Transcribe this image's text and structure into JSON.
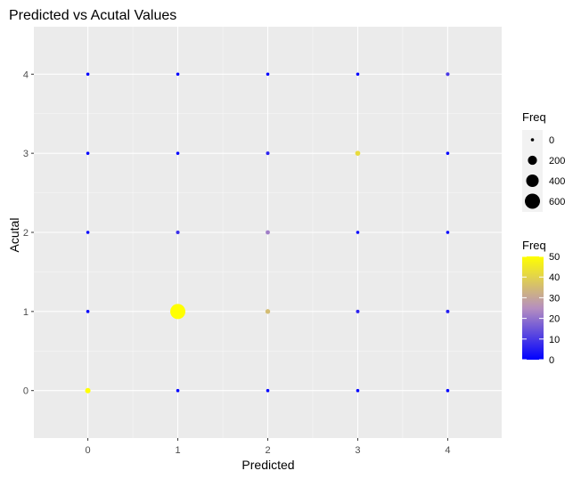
{
  "chart_data": {
    "type": "scatter",
    "title": "Predicted vs Acutal Values",
    "xlabel": "Predicted",
    "ylabel": "Acutal",
    "x_ticks": [
      "0",
      "1",
      "2",
      "3",
      "4"
    ],
    "y_ticks": [
      "0",
      "1",
      "2",
      "3",
      "4"
    ],
    "xlim": [
      -0.6,
      4.6
    ],
    "ylim": [
      -0.6,
      4.6
    ],
    "grid": true,
    "legend_position": "right",
    "size_legend": {
      "title": "Freq",
      "breaks": [
        0,
        200,
        400,
        600
      ],
      "labels": [
        "0",
        "200",
        "400",
        "600"
      ]
    },
    "color_legend": {
      "title": "Freq",
      "breaks": [
        0,
        10,
        20,
        30,
        40,
        50
      ],
      "labels": [
        "0",
        "10",
        "20",
        "30",
        "40",
        "50"
      ],
      "low_color": "#0000ff",
      "high_color": "#ffff00",
      "limits": [
        0,
        50
      ]
    },
    "points": [
      {
        "predicted": 0,
        "actual": 0,
        "freq": 50
      },
      {
        "predicted": 1,
        "actual": 0,
        "freq": 0
      },
      {
        "predicted": 2,
        "actual": 0,
        "freq": 0
      },
      {
        "predicted": 3,
        "actual": 0,
        "freq": 0
      },
      {
        "predicted": 4,
        "actual": 0,
        "freq": 0
      },
      {
        "predicted": 0,
        "actual": 1,
        "freq": 1
      },
      {
        "predicted": 1,
        "actual": 1,
        "freq": 600
      },
      {
        "predicted": 2,
        "actual": 1,
        "freq": 35
      },
      {
        "predicted": 3,
        "actual": 1,
        "freq": 6
      },
      {
        "predicted": 4,
        "actual": 1,
        "freq": 5
      },
      {
        "predicted": 0,
        "actual": 2,
        "freq": 0
      },
      {
        "predicted": 1,
        "actual": 2,
        "freq": 8
      },
      {
        "predicted": 2,
        "actual": 2,
        "freq": 22
      },
      {
        "predicted": 3,
        "actual": 2,
        "freq": 0
      },
      {
        "predicted": 4,
        "actual": 2,
        "freq": 0
      },
      {
        "predicted": 0,
        "actual": 3,
        "freq": 0
      },
      {
        "predicted": 1,
        "actual": 3,
        "freq": 0
      },
      {
        "predicted": 2,
        "actual": 3,
        "freq": 6
      },
      {
        "predicted": 3,
        "actual": 3,
        "freq": 42
      },
      {
        "predicted": 4,
        "actual": 3,
        "freq": 0
      },
      {
        "predicted": 0,
        "actual": 4,
        "freq": 0
      },
      {
        "predicted": 1,
        "actual": 4,
        "freq": 0
      },
      {
        "predicted": 2,
        "actual": 4,
        "freq": 0
      },
      {
        "predicted": 3,
        "actual": 4,
        "freq": 0
      },
      {
        "predicted": 4,
        "actual": 4,
        "freq": 10
      }
    ]
  }
}
